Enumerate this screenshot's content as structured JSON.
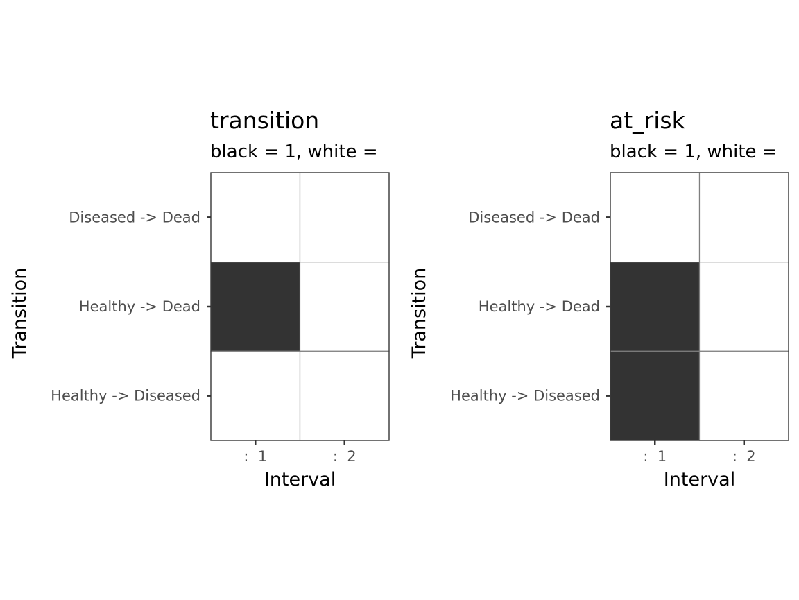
{
  "colors": {
    "filled": "#333333",
    "empty": "#ffffff",
    "cell_border": "#7f7f7f",
    "panel_border": "#333333",
    "tick_text": "#4d4d4d"
  },
  "chart_data": [
    {
      "type": "heatmap",
      "title": "transition",
      "subtitle": "black = 1, white =",
      "xlabel": "Interval",
      "ylabel": "Transition",
      "x_categories": [
        ":  1",
        ":  2"
      ],
      "y_categories": [
        "Diseased -> Dead",
        "Healthy -> Dead",
        "Healthy -> Diseased"
      ],
      "values": [
        [
          0,
          0
        ],
        [
          1,
          0
        ],
        [
          0,
          0
        ]
      ]
    },
    {
      "type": "heatmap",
      "title": "at_risk",
      "subtitle": "black = 1, white =",
      "xlabel": "Interval",
      "ylabel": "Transition",
      "x_categories": [
        ":  1",
        ":  2"
      ],
      "y_categories": [
        "Diseased -> Dead",
        "Healthy -> Dead",
        "Healthy -> Diseased"
      ],
      "values": [
        [
          0,
          0
        ],
        [
          1,
          0
        ],
        [
          1,
          0
        ]
      ]
    }
  ]
}
